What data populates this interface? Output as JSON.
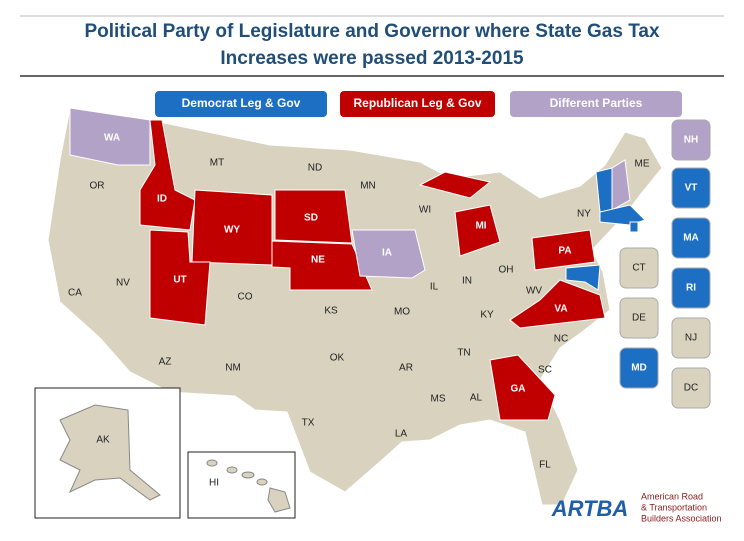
{
  "title": [
    "Political Party of Legislature and Governor where State Gas Tax",
    "Increases were passed 2013-2015"
  ],
  "legend": [
    {
      "label": "Democrat  Leg & Gov",
      "color": "#1c6fc2"
    },
    {
      "label": "Republican Leg & Gov",
      "color": "#c00000"
    },
    {
      "label": "Different Parties",
      "color": "#b3a2c7"
    }
  ],
  "neutral_color": "#d8d2bf",
  "states": [
    {
      "label": "WA",
      "color": "#b3a2c7"
    },
    {
      "label": "OR"
    },
    {
      "label": "CA"
    },
    {
      "label": "NV"
    },
    {
      "label": "ID",
      "color": "#c00000"
    },
    {
      "label": "MT"
    },
    {
      "label": "WY",
      "color": "#c00000"
    },
    {
      "label": "UT",
      "color": "#c00000"
    },
    {
      "label": "AZ"
    },
    {
      "label": "CO"
    },
    {
      "label": "NM"
    },
    {
      "label": "ND"
    },
    {
      "label": "SD",
      "color": "#c00000"
    },
    {
      "label": "NE",
      "color": "#c00000"
    },
    {
      "label": "KS"
    },
    {
      "label": "OK"
    },
    {
      "label": "TX"
    },
    {
      "label": "MN"
    },
    {
      "label": "IA",
      "color": "#b3a2c7"
    },
    {
      "label": "MO"
    },
    {
      "label": "AR"
    },
    {
      "label": "LA"
    },
    {
      "label": "WI"
    },
    {
      "label": "IL"
    },
    {
      "label": "MI",
      "color": "#c00000"
    },
    {
      "label": "IN"
    },
    {
      "label": "OH"
    },
    {
      "label": "KY"
    },
    {
      "label": "TN"
    },
    {
      "label": "MS"
    },
    {
      "label": "AL"
    },
    {
      "label": "GA",
      "color": "#c00000"
    },
    {
      "label": "FL"
    },
    {
      "label": "SC"
    },
    {
      "label": "NC"
    },
    {
      "label": "VA",
      "color": "#c00000"
    },
    {
      "label": "WV"
    },
    {
      "label": "PA",
      "color": "#c00000"
    },
    {
      "label": "NY"
    },
    {
      "label": "ME"
    },
    {
      "label": "AK"
    },
    {
      "label": "HI"
    }
  ],
  "callouts": [
    {
      "label": "NH",
      "color": "#b3a2c7"
    },
    {
      "label": "VT",
      "color": "#1c6fc2"
    },
    {
      "label": "MA",
      "color": "#1c6fc2"
    },
    {
      "label": "RI",
      "color": "#1c6fc2"
    },
    {
      "label": "CT"
    },
    {
      "label": "DE"
    },
    {
      "label": "MD",
      "color": "#1c6fc2"
    },
    {
      "label": "NJ"
    },
    {
      "label": "DC"
    }
  ],
  "logo": {
    "mark": "ARTBA",
    "text": [
      "American Road",
      "& Transportation",
      "Builders Association"
    ]
  }
}
